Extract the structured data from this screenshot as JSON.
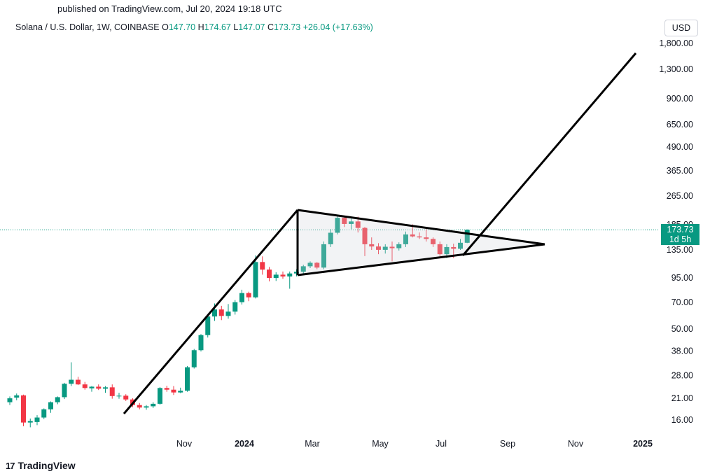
{
  "published": "published on TradingView.com, Jul 20, 2024 19:18 UTC",
  "header": {
    "symbol": "Solana / U.S. Dollar, 1W, COINBASE",
    "o_label": "O",
    "o": "147.70",
    "h_label": "H",
    "h": "174.67",
    "l_label": "L",
    "l": "147.07",
    "c_label": "C",
    "c": "173.73",
    "change": "+26.04 (+17.63%)"
  },
  "currency": "USD",
  "price_badge": {
    "price": "173.73",
    "countdown": "1d 5h"
  },
  "footer": {
    "brand": "TradingView",
    "logo": "17"
  },
  "colors": {
    "up": "#089981",
    "down": "#f23645",
    "price_line": "#089981",
    "drawing": "#000000"
  },
  "chart_data": {
    "type": "candlestick",
    "scale": "log",
    "y_ticks": [
      16,
      21,
      28,
      38,
      50,
      70,
      95,
      135,
      185,
      265,
      365,
      490,
      650,
      900,
      1300,
      1800
    ],
    "y_tick_labels": [
      "16.00",
      "21.00",
      "28.00",
      "38.00",
      "50.00",
      "70.00",
      "95.00",
      "135.00",
      "185.00",
      "265.00",
      "365.00",
      "490.00",
      "650.00",
      "900.00",
      "1,300.00",
      "1,800.00"
    ],
    "x_ticks": [
      {
        "label": "Nov",
        "bold": false
      },
      {
        "label": "2024",
        "bold": true
      },
      {
        "label": "Mar",
        "bold": false
      },
      {
        "label": "May",
        "bold": false
      },
      {
        "label": "Jul",
        "bold": false
      },
      {
        "label": "Sep",
        "bold": false
      },
      {
        "label": "Nov",
        "bold": false
      },
      {
        "label": "2025",
        "bold": true
      }
    ],
    "last_price": 173.73,
    "candles": [
      [
        20.0,
        21.5,
        19.3,
        21.0
      ],
      [
        21.2,
        22.3,
        20.5,
        21.8
      ],
      [
        21.8,
        22.0,
        14.8,
        15.5
      ],
      [
        15.5,
        16.3,
        14.6,
        15.8
      ],
      [
        15.6,
        17.0,
        15.0,
        16.5
      ],
      [
        16.5,
        18.5,
        16.2,
        18.3
      ],
      [
        18.3,
        20.2,
        17.5,
        20.0
      ],
      [
        20.0,
        21.5,
        19.5,
        21.3
      ],
      [
        21.3,
        25.5,
        20.8,
        25.2
      ],
      [
        25.2,
        33.0,
        24.5,
        26.5
      ],
      [
        26.5,
        27.5,
        24.8,
        25.0
      ],
      [
        25.0,
        25.8,
        23.4,
        23.9
      ],
      [
        23.8,
        24.5,
        22.8,
        24.3
      ],
      [
        24.3,
        25.0,
        23.3,
        23.7
      ],
      [
        23.7,
        24.5,
        22.5,
        24.1
      ],
      [
        24.1,
        25.0,
        20.9,
        21.6
      ],
      [
        21.6,
        22.5,
        20.9,
        21.7
      ],
      [
        21.7,
        22.1,
        20.3,
        20.7
      ],
      [
        20.7,
        21.0,
        18.8,
        19.3
      ],
      [
        19.3,
        19.8,
        18.3,
        18.7
      ],
      [
        18.7,
        19.3,
        18.2,
        19.0
      ],
      [
        19.0,
        20.0,
        18.6,
        19.6
      ],
      [
        19.6,
        24.2,
        19.4,
        23.9
      ],
      [
        23.9,
        24.6,
        22.8,
        23.4
      ],
      [
        23.4,
        24.5,
        21.9,
        22.6
      ],
      [
        22.6,
        24.0,
        22.4,
        23.1
      ],
      [
        23.1,
        31.5,
        22.8,
        31.0
      ],
      [
        31.0,
        39.0,
        30.5,
        38.4
      ],
      [
        38.4,
        47.0,
        37.8,
        46.4
      ],
      [
        46.4,
        60.0,
        45.0,
        58.6
      ],
      [
        58.6,
        69.0,
        55.5,
        64.0
      ],
      [
        64.0,
        67.0,
        56.0,
        59.0
      ],
      [
        59.0,
        68.5,
        57.0,
        62.3
      ],
      [
        62.3,
        72.0,
        60.0,
        70.1
      ],
      [
        70.1,
        82.0,
        68.0,
        78.6
      ],
      [
        78.6,
        80.0,
        71.0,
        74.5
      ],
      [
        74.5,
        126.0,
        73.5,
        116.0
      ],
      [
        116.0,
        124.5,
        99.0,
        105.5
      ],
      [
        105.5,
        109.0,
        91.0,
        95.0
      ],
      [
        95.0,
        102.0,
        91.5,
        99.0
      ],
      [
        99.0,
        103.0,
        94.0,
        96.8
      ],
      [
        96.8,
        103.0,
        83.0,
        100.5
      ],
      [
        100.5,
        106.0,
        97.0,
        102.7
      ],
      [
        102.7,
        112.0,
        100.5,
        110.0
      ],
      [
        110.0,
        117.0,
        107.5,
        114.9
      ],
      [
        114.9,
        116.0,
        106.0,
        108.2
      ],
      [
        108.2,
        150.0,
        106.0,
        145.0
      ],
      [
        145.0,
        175.0,
        140.0,
        167.5
      ],
      [
        167.5,
        210.0,
        164.0,
        202.0
      ],
      [
        202.0,
        205.0,
        180.0,
        187.0
      ],
      [
        187.0,
        200.0,
        175.0,
        193.0
      ],
      [
        193.0,
        205.0,
        168.0,
        178.0
      ],
      [
        178.0,
        180.0,
        125.0,
        145.0
      ],
      [
        145.0,
        158.0,
        135.0,
        141.0
      ],
      [
        141.0,
        147.0,
        128.0,
        135.2
      ],
      [
        135.2,
        145.0,
        129.0,
        140.5
      ],
      [
        140.5,
        150.0,
        117.0,
        138.0
      ],
      [
        138.0,
        148.5,
        134.0,
        145.0
      ],
      [
        145.0,
        170.0,
        140.0,
        164.0
      ],
      [
        164.0,
        186.0,
        158.0,
        160.0
      ],
      [
        160.0,
        168.0,
        155.0,
        158.0
      ],
      [
        158.0,
        175.0,
        150.0,
        155.0
      ],
      [
        155.0,
        158.0,
        140.0,
        145.0
      ],
      [
        145.0,
        150.0,
        125.0,
        128.0
      ],
      [
        128.0,
        145.0,
        122.0,
        140.0
      ],
      [
        140.0,
        146.0,
        122.0,
        137.0
      ],
      [
        137.0,
        155.0,
        135.0,
        147.7
      ],
      [
        147.7,
        174.67,
        147.07,
        173.73
      ]
    ]
  }
}
